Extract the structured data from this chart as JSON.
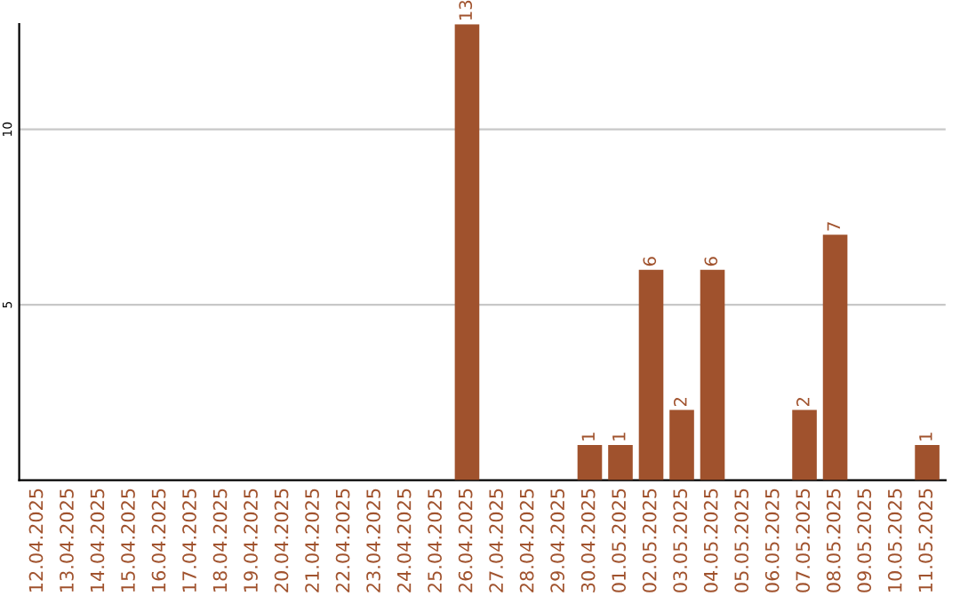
{
  "chart_data": {
    "type": "bar",
    "categories": [
      "12.04.2025",
      "13.04.2025",
      "14.04.2025",
      "15.04.2025",
      "16.04.2025",
      "17.04.2025",
      "18.04.2025",
      "19.04.2025",
      "20.04.2025",
      "21.04.2025",
      "22.04.2025",
      "23.04.2025",
      "24.04.2025",
      "25.04.2025",
      "26.04.2025",
      "27.04.2025",
      "28.04.2025",
      "29.04.2025",
      "30.04.2025",
      "01.05.2025",
      "02.05.2025",
      "03.05.2025",
      "04.05.2025",
      "05.05.2025",
      "06.05.2025",
      "07.05.2025",
      "08.05.2025",
      "09.05.2025",
      "10.05.2025",
      "11.05.2025"
    ],
    "values": [
      0,
      0,
      0,
      0,
      0,
      0,
      0,
      0,
      0,
      0,
      0,
      0,
      0,
      0,
      13,
      0,
      0,
      0,
      1,
      1,
      6,
      2,
      6,
      0,
      0,
      2,
      7,
      0,
      0,
      1
    ],
    "value_labels": [
      null,
      null,
      null,
      null,
      null,
      null,
      null,
      null,
      null,
      null,
      null,
      null,
      null,
      null,
      "13",
      null,
      null,
      null,
      "1",
      "1",
      "6",
      "2",
      "6",
      null,
      null,
      "2",
      "7",
      null,
      null,
      "1"
    ],
    "color": "#a0522d",
    "ylim": [
      0,
      13
    ],
    "yticks": [
      5,
      10
    ],
    "grid": "y",
    "legend": false
  }
}
